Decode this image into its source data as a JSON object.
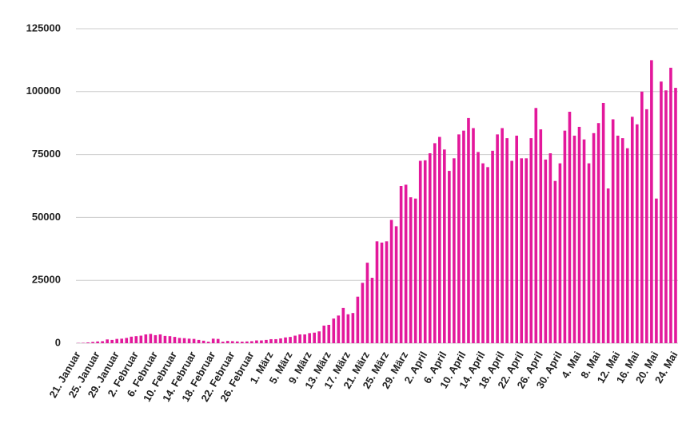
{
  "chart_data": {
    "type": "bar",
    "categories": [
      "21. Januar",
      null,
      null,
      null,
      "25. Januar",
      null,
      null,
      null,
      "29. Januar",
      null,
      null,
      null,
      "2. Februar",
      null,
      null,
      null,
      "6. Februar",
      null,
      null,
      null,
      "10. Februar",
      null,
      null,
      null,
      "14. Februar",
      null,
      null,
      null,
      "18. Februar",
      null,
      null,
      null,
      "22. Februar",
      null,
      null,
      null,
      "26. Februar",
      null,
      null,
      null,
      "1. März",
      null,
      null,
      null,
      "5. März",
      null,
      null,
      null,
      "9. März",
      null,
      null,
      null,
      "13. März",
      null,
      null,
      null,
      "17. März",
      null,
      null,
      null,
      "21. März",
      null,
      null,
      null,
      "25. März",
      null,
      null,
      null,
      "29. März",
      null,
      null,
      null,
      "2. April",
      null,
      null,
      null,
      "6. April",
      null,
      null,
      null,
      "10. April",
      null,
      null,
      null,
      "14. April",
      null,
      null,
      null,
      "18. April",
      null,
      null,
      null,
      "22. April",
      null,
      null,
      null,
      "26. April",
      null,
      null,
      null,
      "30. April",
      null,
      null,
      null,
      "4. Mai",
      null,
      null,
      null,
      "8. Mai",
      null,
      null,
      null,
      "12. Mai",
      null,
      null,
      null,
      "16. Mai",
      null,
      null,
      null,
      "20. Mai",
      null,
      null,
      null,
      "24. Mai"
    ],
    "values": [
      100,
      150,
      300,
      500,
      700,
      800,
      1500,
      1300,
      1700,
      1800,
      2100,
      2600,
      2800,
      3000,
      3500,
      3700,
      3200,
      3500,
      2900,
      2800,
      2500,
      2100,
      2000,
      1800,
      1700,
      1300,
      1000,
      600,
      1800,
      1700,
      600,
      900,
      800,
      700,
      600,
      700,
      800,
      1100,
      1100,
      1300,
      1600,
      1600,
      1900,
      2300,
      2500,
      3000,
      3500,
      3500,
      4000,
      4200,
      4700,
      7000,
      7300,
      9800,
      11000,
      14000,
      11500,
      12000,
      18500,
      24000,
      32000,
      26000,
      40500,
      40000,
      40500,
      49000,
      46500,
      62500,
      63000,
      58000,
      57500,
      72500,
      72700,
      75500,
      79500,
      82000,
      77000,
      68500,
      73500,
      83000,
      84500,
      89500,
      85500,
      76000,
      71500,
      70000,
      76500,
      83000,
      85500,
      81500,
      72500,
      82500,
      73500,
      73500,
      81500,
      93500,
      85000,
      73000,
      75500,
      64500,
      71500,
      84500,
      92000,
      82500,
      86000,
      81000,
      71500,
      83500,
      87500,
      95500,
      61500,
      89000,
      82500,
      81500,
      77500,
      90000,
      87000,
      100000,
      93000,
      112500,
      57500,
      104000,
      100500,
      109500,
      101500
    ],
    "color": "#e3189b",
    "ylim": [
      0,
      125000
    ],
    "yticks": [
      0,
      25000,
      50000,
      75000,
      100000,
      125000
    ],
    "grid": true
  }
}
